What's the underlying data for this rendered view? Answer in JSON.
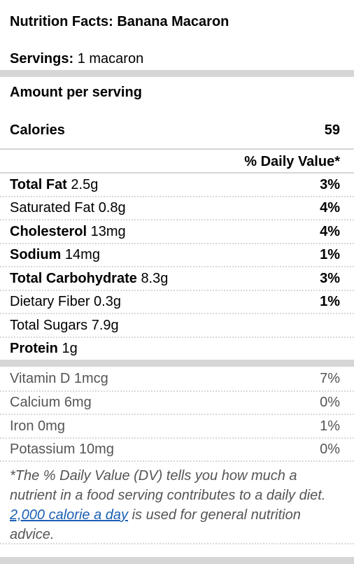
{
  "title": "Nutrition Facts: Banana Macaron",
  "servings": {
    "label": "Servings:",
    "value": "1 macaron"
  },
  "amount_per_serving": "Amount per serving",
  "calories": {
    "label": "Calories",
    "value": "59"
  },
  "dv_header": "% Daily Value*",
  "nutrients": [
    {
      "name": "Total Fat",
      "amount": "2.5g",
      "pct": "3%",
      "bold": true
    },
    {
      "name": "Saturated Fat",
      "amount": "0.8g",
      "pct": "4%",
      "bold": false
    },
    {
      "name": "Cholesterol",
      "amount": "13mg",
      "pct": "4%",
      "bold": true
    },
    {
      "name": "Sodium",
      "amount": "14mg",
      "pct": "1%",
      "bold": true
    },
    {
      "name": "Total Carbohydrate",
      "amount": "8.3g",
      "pct": "3%",
      "bold": true
    },
    {
      "name": "Dietary Fiber",
      "amount": "0.3g",
      "pct": "1%",
      "bold": false
    },
    {
      "name": "Total Sugars",
      "amount": "7.9g",
      "pct": "",
      "bold": false
    },
    {
      "name": "Protein",
      "amount": "1g",
      "pct": "",
      "bold": true
    }
  ],
  "vitamins": [
    {
      "name": "Vitamin D",
      "amount": "1mcg",
      "pct": "7%"
    },
    {
      "name": "Calcium",
      "amount": "6mg",
      "pct": "0%"
    },
    {
      "name": "Iron",
      "amount": "0mg",
      "pct": "1%"
    },
    {
      "name": "Potassium",
      "amount": "10mg",
      "pct": "0%"
    }
  ],
  "footnote": {
    "before": "*The % Daily Value (DV) tells you how much a nutrient in a food serving contributes to a daily diet. ",
    "link": "2,000 calorie a day",
    "after": " is used for general nutrition advice."
  },
  "colors": {
    "bar": "#d6d6d6",
    "muted_text": "#555555",
    "link": "#1a5fb4"
  }
}
